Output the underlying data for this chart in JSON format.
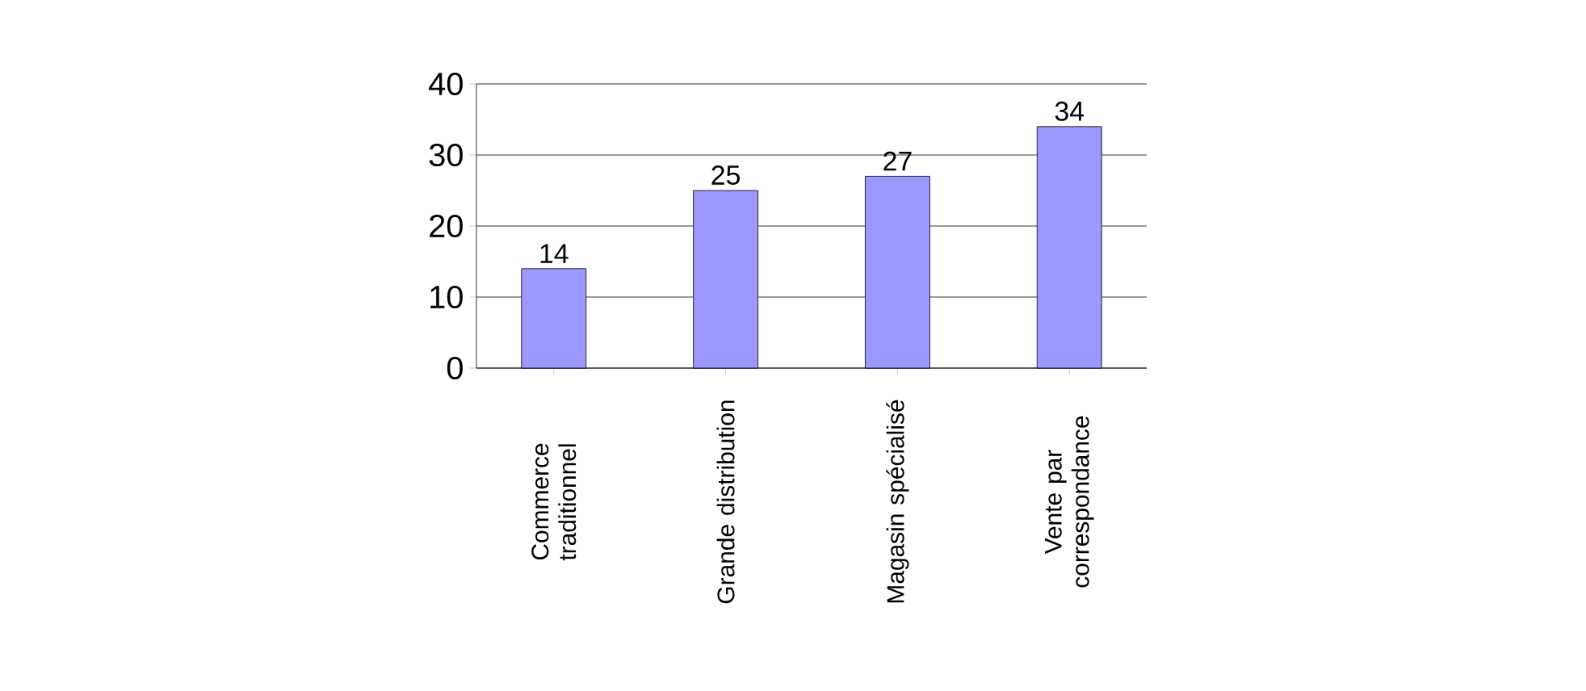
{
  "chart_data": {
    "type": "bar",
    "categories": [
      "Commerce traditionnel",
      "Grande distribution",
      "Magasin spécialisé",
      "Vente par correspondance"
    ],
    "values": [
      14,
      25,
      27,
      34
    ],
    "color": "#9999ff",
    "ylim": [
      0,
      40
    ],
    "yticks": [
      0,
      10,
      20,
      30,
      40
    ],
    "grid": "y",
    "data_labels": true
  }
}
